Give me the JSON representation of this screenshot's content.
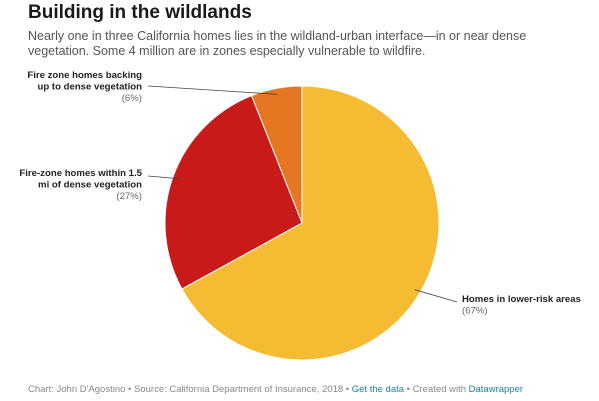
{
  "header": {
    "title": "Building in the wildlands",
    "subtitle": "Nearly one in three California homes lies in the wildland-urban interface—in or near dense vegetation. Some 4 million are in zones especially vulnerable to wildfire."
  },
  "chart_data": {
    "type": "pie",
    "title": "Building in the wildlands",
    "slices": [
      {
        "name": "Homes in lower-risk areas",
        "label_lines": [
          "Homes in lower-risk areas"
        ],
        "value": 67,
        "value_label": "(67%)",
        "color": "#f5bb33"
      },
      {
        "name": "Fire-zone homes within 1.5 mi of dense vegetation",
        "label_lines": [
          "Fire-zone homes within 1.5",
          "mi of dense vegetation"
        ],
        "value": 27,
        "value_label": "(27%)",
        "color": "#c91a1a"
      },
      {
        "name": "Fire zone homes backing up to dense vegetation",
        "label_lines": [
          "Fire zone homes backing",
          "up to dense vegetation"
        ],
        "value": 6,
        "value_label": "(6%)",
        "color": "#e57722"
      }
    ]
  },
  "footer": {
    "chart_prefix": "Chart: John D'Agostino",
    "sep1": " • ",
    "source": "Source: California Department of Insurance, 2018",
    "sep2": " • ",
    "get_data": "Get the data",
    "sep3": " • ",
    "created_with": "Created with ",
    "tool": "Datawrapper"
  }
}
